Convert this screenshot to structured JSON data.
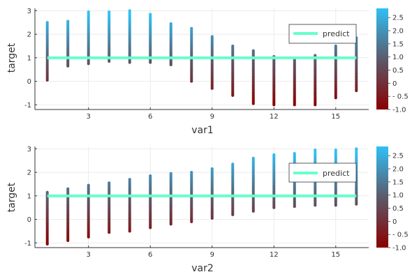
{
  "chart_data": [
    {
      "type": "scatter",
      "xlabel": "var1",
      "ylabel": "target",
      "xlim": [
        0.4,
        16.6
      ],
      "ylim": [
        -1.2,
        3.1
      ],
      "xticks": [
        3,
        6,
        9,
        12,
        15
      ],
      "yticks": [
        -1,
        0,
        1,
        2,
        3
      ],
      "grid": true,
      "legend": {
        "placement": "top-right",
        "entries": [
          "predict"
        ]
      },
      "predict_line": {
        "name": "predict",
        "y": 1.0,
        "x_range": [
          1,
          16
        ],
        "color": "#66ffcc"
      },
      "colorbar": {
        "min": -1.0,
        "max": 2.85,
        "ticks": [
          -1.0,
          -0.5,
          0.0,
          0.5,
          1.0,
          1.5,
          2.0,
          2.5
        ],
        "tick_labels": [
          "-1.0",
          "- 0.5",
          "0",
          "0.5",
          "1.0",
          "1.5",
          "2.0",
          "2.5"
        ]
      },
      "point_columns": [
        {
          "x": 1,
          "y_min": 0.05,
          "y_max": 2.5
        },
        {
          "x": 2,
          "y_min": 0.65,
          "y_max": 2.55
        },
        {
          "x": 3,
          "y_min": 0.75,
          "y_max": 2.95
        },
        {
          "x": 4,
          "y_min": 0.85,
          "y_max": 2.95
        },
        {
          "x": 5,
          "y_min": 0.8,
          "y_max": 3.0
        },
        {
          "x": 6,
          "y_min": 0.8,
          "y_max": 2.85
        },
        {
          "x": 7,
          "y_min": 0.7,
          "y_max": 2.45
        },
        {
          "x": 8,
          "y_min": 0.0,
          "y_max": 2.25
        },
        {
          "x": 9,
          "y_min": -0.3,
          "y_max": 1.9
        },
        {
          "x": 10,
          "y_min": -0.6,
          "y_max": 1.5
        },
        {
          "x": 11,
          "y_min": -0.95,
          "y_max": 1.3
        },
        {
          "x": 12,
          "y_min": -1.0,
          "y_max": 1.05
        },
        {
          "x": 13,
          "y_min": -1.0,
          "y_max": 0.95
        },
        {
          "x": 14,
          "y_min": -1.0,
          "y_max": 1.1
        },
        {
          "x": 15,
          "y_min": -0.7,
          "y_max": 1.5
        },
        {
          "x": 16,
          "y_min": -0.4,
          "y_max": 1.85
        }
      ]
    },
    {
      "type": "scatter",
      "xlabel": "var2",
      "ylabel": "target",
      "xlim": [
        0.4,
        16.6
      ],
      "ylim": [
        -1.2,
        3.1
      ],
      "xticks": [
        3,
        6,
        9,
        12,
        15
      ],
      "yticks": [
        -1,
        0,
        1,
        2,
        3
      ],
      "grid": true,
      "legend": {
        "placement": "top-right",
        "entries": [
          "predict"
        ]
      },
      "predict_line": {
        "name": "predict",
        "y": 1.0,
        "x_range": [
          1,
          16
        ],
        "color": "#66ffcc"
      },
      "colorbar": {
        "min": -1.0,
        "max": 2.85,
        "ticks": [
          -1.0,
          -0.5,
          0.0,
          0.5,
          1.0,
          1.5,
          2.0,
          2.5
        ],
        "tick_labels": [
          "-1.0",
          "- 0.5",
          "0",
          "0.5",
          "1.0",
          "1.5",
          "2.0",
          "2.5"
        ]
      },
      "point_columns": [
        {
          "x": 1,
          "y_min": -1.05,
          "y_max": 1.15
        },
        {
          "x": 2,
          "y_min": -0.9,
          "y_max": 1.3
        },
        {
          "x": 3,
          "y_min": -0.75,
          "y_max": 1.45
        },
        {
          "x": 4,
          "y_min": -0.55,
          "y_max": 1.55
        },
        {
          "x": 5,
          "y_min": -0.5,
          "y_max": 1.7
        },
        {
          "x": 6,
          "y_min": -0.35,
          "y_max": 1.85
        },
        {
          "x": 7,
          "y_min": -0.2,
          "y_max": 1.95
        },
        {
          "x": 8,
          "y_min": -0.1,
          "y_max": 2.0
        },
        {
          "x": 9,
          "y_min": 0.05,
          "y_max": 2.15
        },
        {
          "x": 10,
          "y_min": 0.2,
          "y_max": 2.35
        },
        {
          "x": 11,
          "y_min": 0.35,
          "y_max": 2.6
        },
        {
          "x": 12,
          "y_min": 0.5,
          "y_max": 2.75
        },
        {
          "x": 13,
          "y_min": 0.55,
          "y_max": 2.8
        },
        {
          "x": 14,
          "y_min": 0.6,
          "y_max": 2.95
        },
        {
          "x": 15,
          "y_min": 0.6,
          "y_max": 2.95
        },
        {
          "x": 16,
          "y_min": 0.65,
          "y_max": 3.0
        }
      ]
    }
  ],
  "colors": {
    "colormap": [
      "#8b0000",
      "#5b5a6b",
      "#2fc0f5"
    ],
    "predict_line": "#66ffcc",
    "grid": "#e6e6e6",
    "axis": "#333333"
  }
}
